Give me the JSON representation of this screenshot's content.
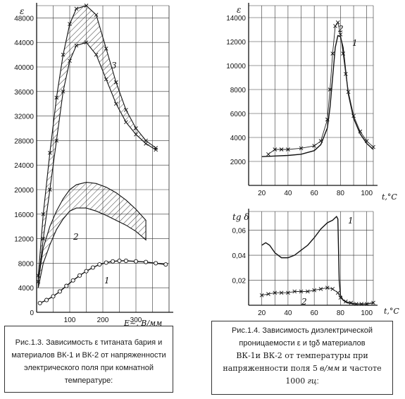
{
  "chart_data": [
    {
      "type": "line",
      "title": "",
      "ylabel": "ε",
      "xlabel": "E~, В/мм",
      "xlim": [
        0,
        400
      ],
      "ylim": [
        0,
        50000
      ],
      "x_ticks": [
        100,
        200,
        300
      ],
      "y_ticks": [
        0,
        4000,
        8000,
        12000,
        16000,
        20000,
        24000,
        28000,
        32000,
        36000,
        40000,
        44000,
        48000
      ],
      "curve_labels": [
        "1",
        "2",
        "3"
      ],
      "series": [
        {
          "marker": "circle",
          "x": [
            10,
            30,
            50,
            70,
            90,
            110,
            130,
            150,
            170,
            190,
            210,
            230,
            250,
            270,
            300,
            330,
            360,
            390
          ],
          "y": [
            1500,
            2000,
            2600,
            3400,
            4300,
            5200,
            6000,
            6700,
            7300,
            7800,
            8100,
            8300,
            8400,
            8400,
            8300,
            8200,
            8000,
            7800
          ]
        },
        {
          "marker": "band",
          "x": [
            5,
            20,
            40,
            60,
            80,
            100,
            120,
            150,
            180,
            210,
            240,
            270,
            300,
            330
          ],
          "y_low": [
            4000,
            8000,
            11000,
            13500,
            15200,
            16500,
            17000,
            17000,
            16500,
            15800,
            15000,
            14200,
            13200,
            11800
          ],
          "y_high": [
            5000,
            10500,
            14000,
            16500,
            18500,
            20000,
            20800,
            21200,
            21000,
            20400,
            19500,
            18300,
            16800,
            15000
          ]
        },
        {
          "marker": "cross-band",
          "x": [
            5,
            20,
            40,
            60,
            80,
            100,
            120,
            150,
            180,
            210,
            240,
            270,
            300,
            330,
            360
          ],
          "y_low": [
            5000,
            12000,
            20000,
            28000,
            36000,
            41000,
            43500,
            44000,
            42000,
            38000,
            34000,
            31000,
            29000,
            27500,
            26500
          ],
          "y_high": [
            6000,
            16000,
            26000,
            35000,
            42000,
            47000,
            49500,
            50000,
            48500,
            43000,
            37500,
            33000,
            30000,
            28000,
            26800
          ]
        }
      ]
    },
    {
      "type": "line",
      "title": "",
      "ylabel": "ε",
      "xlabel": "t,°C",
      "xlim": [
        10,
        105
      ],
      "ylim": [
        0,
        15000
      ],
      "x_ticks": [
        20,
        40,
        60,
        80,
        100
      ],
      "y_ticks": [
        2000,
        4000,
        6000,
        8000,
        10000,
        12000,
        14000
      ],
      "curve_labels": [
        "1",
        "2"
      ],
      "series": [
        {
          "marker": "solid",
          "x": [
            20,
            30,
            40,
            50,
            60,
            65,
            70,
            72,
            74,
            76,
            78,
            80,
            82,
            84,
            86,
            90,
            95,
            100,
            105
          ],
          "y": [
            2400,
            2450,
            2500,
            2600,
            2900,
            3400,
            4800,
            6500,
            9000,
            11500,
            12500,
            12400,
            11500,
            9500,
            7600,
            5600,
            4300,
            3500,
            3000
          ]
        },
        {
          "marker": "cross",
          "x": [
            25,
            30,
            35,
            40,
            50,
            60,
            65,
            70,
            72,
            74,
            76,
            78,
            80,
            82,
            84,
            86,
            90,
            95,
            100,
            105
          ],
          "y": [
            2600,
            3000,
            3000,
            3000,
            3100,
            3300,
            3700,
            5500,
            8000,
            11000,
            13300,
            13600,
            12600,
            11000,
            9300,
            7800,
            5800,
            4500,
            3700,
            3200
          ]
        }
      ]
    },
    {
      "type": "line",
      "title": "",
      "ylabel": "tg δ",
      "xlabel": "t,°C",
      "xlim": [
        10,
        105
      ],
      "ylim": [
        0,
        0.075
      ],
      "x_ticks": [
        20,
        40,
        60,
        80,
        100
      ],
      "y_ticks": [
        0.02,
        0.04,
        0.06
      ],
      "curve_labels": [
        "1",
        "2"
      ],
      "series": [
        {
          "marker": "solid",
          "x": [
            20,
            23,
            26,
            30,
            35,
            40,
            45,
            50,
            55,
            60,
            65,
            70,
            74,
            76,
            77,
            78,
            79,
            80,
            82,
            85,
            90,
            95,
            100,
            105
          ],
          "y": [
            0.048,
            0.05,
            0.048,
            0.042,
            0.038,
            0.038,
            0.04,
            0.044,
            0.048,
            0.054,
            0.061,
            0.066,
            0.068,
            0.07,
            0.071,
            0.069,
            0.02,
            0.008,
            0.004,
            0.002,
            0.001,
            0.001,
            0.001,
            0.002
          ]
        },
        {
          "marker": "cross",
          "x": [
            20,
            25,
            30,
            35,
            40,
            45,
            50,
            55,
            60,
            65,
            70,
            74,
            78,
            80,
            84,
            88,
            92,
            96,
            100,
            105
          ],
          "y": [
            0.008,
            0.009,
            0.01,
            0.01,
            0.01,
            0.011,
            0.011,
            0.011,
            0.012,
            0.013,
            0.014,
            0.013,
            0.01,
            0.006,
            0.003,
            0.002,
            0.001,
            0.001,
            0.001,
            0.002
          ]
        }
      ]
    }
  ],
  "captions": {
    "left": "Рис.1.3. Зависимость ε титаната бария и материалов ВК-1 и ВК-2 от напряженности электрического поля при комнатной температуре:",
    "right_1": "Рис.1.4. Зависимость диэлектрической проницаемости ε и tgδ материалов",
    "right_2": "ВК-1и ВК-2 от температуры при напряженности поля 5",
    "right_unit1": "в/мм",
    "right_3": "и частоте",
    "right_4": "1000",
    "right_unit2": "гц",
    "right_end": ":"
  }
}
